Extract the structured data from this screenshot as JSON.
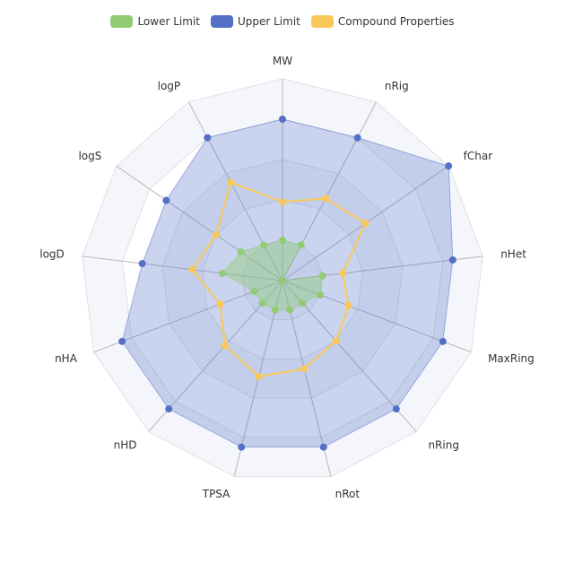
{
  "chart_data": {
    "type": "radar",
    "legend_position": "top-center",
    "indicators": [
      "MW",
      "nRig",
      "fChar",
      "nHet",
      "MaxRing",
      "nRing",
      "nRot",
      "TPSA",
      "nHD",
      "nHA",
      "logD",
      "logS",
      "logP"
    ],
    "scale": {
      "min": 0,
      "max": 1
    },
    "split_number": 5,
    "series": [
      {
        "name": "Lower Limit",
        "color": "#91cc75",
        "values": [
          0.2,
          0.2,
          0.0,
          0.2,
          0.2,
          0.15,
          0.15,
          0.15,
          0.15,
          0.15,
          0.3,
          0.25,
          0.2
        ]
      },
      {
        "name": "Upper Limit",
        "color": "#5470c6",
        "values": [
          0.8,
          0.8,
          1.0,
          0.85,
          0.85,
          0.85,
          0.85,
          0.85,
          0.85,
          0.85,
          0.7,
          0.7,
          0.8
        ]
      },
      {
        "name": "Compound Properties",
        "color": "#fac858",
        "values": [
          0.39,
          0.46,
          0.5,
          0.3,
          0.35,
          0.4,
          0.45,
          0.49,
          0.43,
          0.33,
          0.45,
          0.4,
          0.55
        ]
      }
    ]
  }
}
